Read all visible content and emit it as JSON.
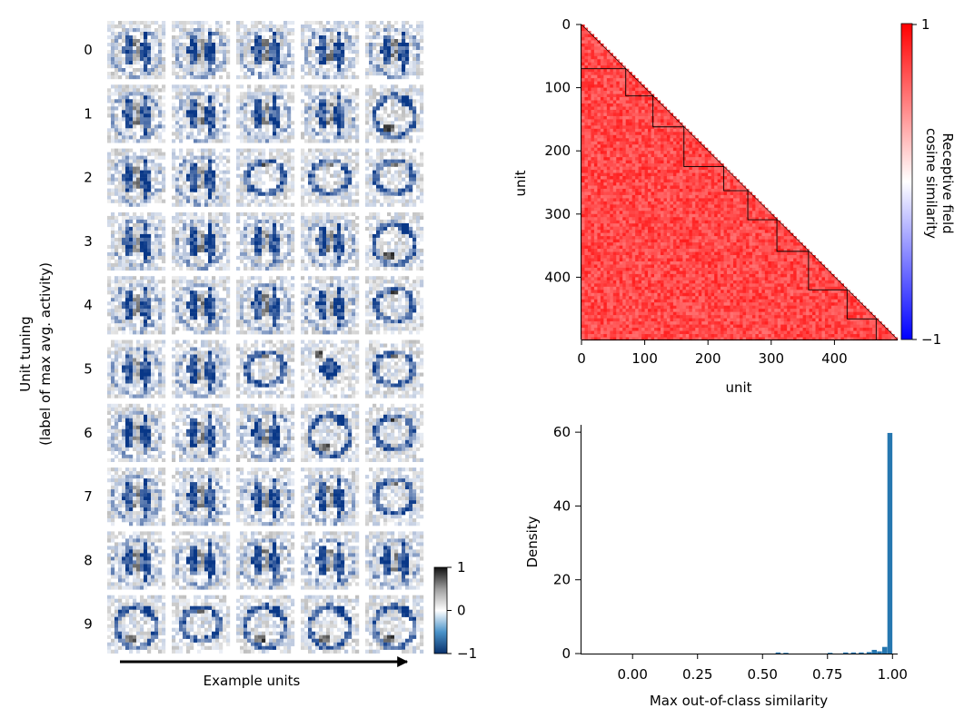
{
  "chart_data": [
    {
      "type": "heatmap",
      "subtype": "image-grid",
      "ylabel": "Unit tuning\n(label of max avg. activity)",
      "xlabel": "Example units",
      "row_labels": [
        "0",
        "1",
        "2",
        "3",
        "4",
        "5",
        "6",
        "7",
        "8",
        "9"
      ],
      "columns_per_row": 5,
      "tile_patterns": [
        [
          "digit",
          "digit",
          "digit",
          "digit",
          "digit"
        ],
        [
          "digit",
          "digit",
          "digit",
          "digit",
          "loop-dark"
        ],
        [
          "digit",
          "digit",
          "ring",
          "ring",
          "ring"
        ],
        [
          "digit",
          "digit",
          "digit",
          "digit",
          "loop-dark"
        ],
        [
          "digit",
          "digit",
          "digit",
          "digit",
          "ring"
        ],
        [
          "digit",
          "digit",
          "ring",
          "blob",
          "ring"
        ],
        [
          "digit",
          "digit",
          "digit",
          "loop-dark",
          "ring"
        ],
        [
          "digit",
          "digit",
          "digit",
          "digit",
          "ring"
        ],
        [
          "digit",
          "digit",
          "digit",
          "digit",
          "digit"
        ],
        [
          "loop-dark",
          "ring",
          "loop-dark",
          "loop-dark",
          "loop-dark"
        ]
      ],
      "colorbar": {
        "ticks": [
          "1",
          "0",
          "−1"
        ],
        "range": [
          -1,
          1
        ],
        "colormap": "blue-white-gray"
      }
    },
    {
      "type": "heatmap",
      "subtype": "lower-triangular similarity matrix",
      "xlabel": "unit",
      "ylabel": "unit",
      "xticks": [
        "0",
        "100",
        "200",
        "300",
        "400"
      ],
      "yticks": [
        "0",
        "100",
        "200",
        "300",
        "400"
      ],
      "xlim": [
        0,
        500
      ],
      "ylim": [
        500,
        0
      ],
      "n_units": 500,
      "block_boundaries": [
        0,
        70,
        113,
        162,
        225,
        263,
        309,
        359,
        420,
        466,
        500
      ],
      "colorbar": {
        "label": "Receptive field\ncosine similarity",
        "ticks": [
          "1",
          "−1"
        ],
        "range": [
          -1,
          1
        ],
        "colormap": "bwr"
      },
      "typical_value": 0.85
    },
    {
      "type": "bar",
      "subtype": "histogram",
      "xlabel": "Max out-of-class similarity",
      "ylabel": "Density",
      "xticks": [
        "0.00",
        "0.25",
        "0.50",
        "0.75",
        "1.00"
      ],
      "yticks": [
        "0",
        "20",
        "40",
        "60"
      ],
      "xlim": [
        -0.2,
        1.02
      ],
      "ylim": [
        0,
        62
      ],
      "bins": [
        {
          "x": 0.56,
          "value": 0.3
        },
        {
          "x": 0.59,
          "value": 0.2
        },
        {
          "x": 0.76,
          "value": 0.2
        },
        {
          "x": 0.82,
          "value": 0.3
        },
        {
          "x": 0.85,
          "value": 0.3
        },
        {
          "x": 0.88,
          "value": 0.3
        },
        {
          "x": 0.91,
          "value": 0.4
        },
        {
          "x": 0.93,
          "value": 1.0
        },
        {
          "x": 0.95,
          "value": 0.6
        },
        {
          "x": 0.97,
          "value": 1.8
        },
        {
          "x": 0.99,
          "value": 59.8
        }
      ],
      "bar_color": "#2677b0"
    }
  ]
}
